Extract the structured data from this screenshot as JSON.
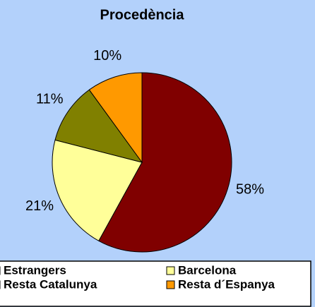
{
  "chart_data": {
    "type": "pie",
    "title": "Procedència",
    "categories": [
      "Estrangers",
      "Barcelona",
      "Resta Catalunya",
      "Resta d´Espanya"
    ],
    "values": [
      58,
      21,
      11,
      10
    ],
    "value_labels": [
      "58%",
      "21%",
      "11%",
      "10%"
    ],
    "colors": [
      "#800000",
      "#ffff99",
      "#808000",
      "#ff9900"
    ]
  }
}
